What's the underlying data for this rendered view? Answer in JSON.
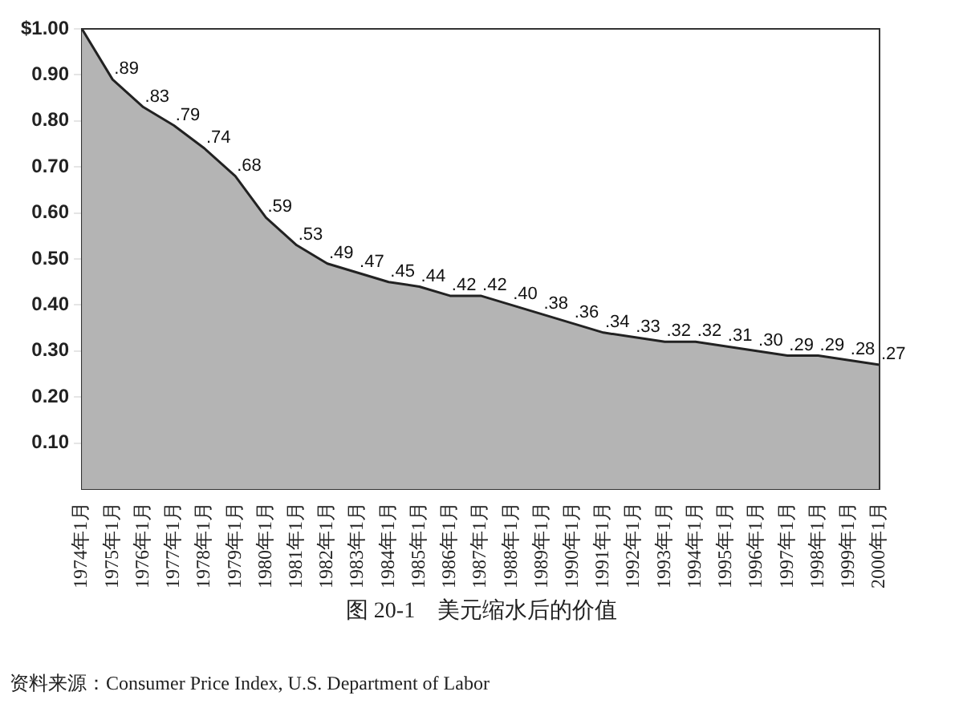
{
  "chart_data": {
    "type": "area",
    "title": "图 20-1　美元缩水后的价值",
    "categories": [
      "1974年1月",
      "1975年1月",
      "1976年1月",
      "1977年1月",
      "1978年1月",
      "1979年1月",
      "1980年1月",
      "1981年1月",
      "1982年1月",
      "1983年1月",
      "1984年1月",
      "1985年1月",
      "1986年1月",
      "1987年1月",
      "1988年1月",
      "1989年1月",
      "1990年1月",
      "1991年1月",
      "1992年1月",
      "1993年1月",
      "1994年1月",
      "1995年1月",
      "1996年1月",
      "1997年1月",
      "1998年1月",
      "1999年1月",
      "2000年1月"
    ],
    "series": [
      {
        "color": "#b4b4b4",
        "values": [
          1.0,
          0.89,
          0.83,
          0.79,
          0.74,
          0.68,
          0.59,
          0.53,
          0.49,
          0.47,
          0.45,
          0.44,
          0.42,
          0.42,
          0.4,
          0.38,
          0.36,
          0.34,
          0.33,
          0.32,
          0.32,
          0.31,
          0.3,
          0.29,
          0.29,
          0.28,
          0.27
        ],
        "value_labels": [
          null,
          ".89",
          ".83",
          ".79",
          ".74",
          ".68",
          ".59",
          ".53",
          ".49",
          ".47",
          ".45",
          ".44",
          ".42",
          ".42",
          ".40",
          ".38",
          ".36",
          ".34",
          ".33",
          ".32",
          ".32",
          ".31",
          ".30",
          ".29",
          ".29",
          ".28",
          ".27"
        ]
      }
    ],
    "ylim": [
      0,
      1
    ],
    "yticks": [
      {
        "value": 0.1,
        "label": "0.10"
      },
      {
        "value": 0.2,
        "label": "0.20"
      },
      {
        "value": 0.3,
        "label": "0.30"
      },
      {
        "value": 0.4,
        "label": "0.40"
      },
      {
        "value": 0.5,
        "label": "0.50"
      },
      {
        "value": 0.6,
        "label": "0.60"
      },
      {
        "value": 0.7,
        "label": "0.70"
      },
      {
        "value": 0.8,
        "label": "0.80"
      },
      {
        "value": 0.9,
        "label": "0.90"
      },
      {
        "value": 1,
        "label": "$1.00"
      }
    ],
    "grid": false,
    "legend": false,
    "marker": "none",
    "annotations": [
      "资料来源：Consumer Price Index, U.S. Department of Labor"
    ]
  }
}
